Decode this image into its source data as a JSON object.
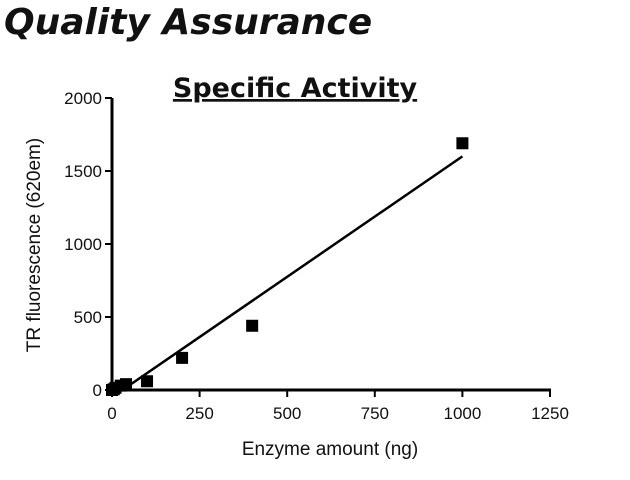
{
  "page": {
    "title": "Quality Assurance"
  },
  "chart_data": {
    "type": "scatter",
    "title": "Specific Activity",
    "xlabel": "Enzyme amount (ng)",
    "ylabel": "TR fluorescence (620em)",
    "xlim": [
      0,
      1250
    ],
    "ylim": [
      0,
      2000
    ],
    "xticks": [
      0,
      250,
      500,
      750,
      1000,
      1250
    ],
    "yticks": [
      0,
      500,
      1000,
      1500,
      2000
    ],
    "marker": "square",
    "series": [
      {
        "x": [
          0,
          5,
          10,
          25,
          40,
          100,
          200,
          400,
          1000
        ],
        "y": [
          0,
          5,
          15,
          30,
          40,
          60,
          220,
          440,
          1690
        ]
      }
    ],
    "fit_line": {
      "x": [
        30,
        1000
      ],
      "y": [
        0,
        1600
      ]
    },
    "grid": false,
    "colors": {
      "marker": "#000000",
      "line": "#000000",
      "axis": "#000000"
    }
  }
}
